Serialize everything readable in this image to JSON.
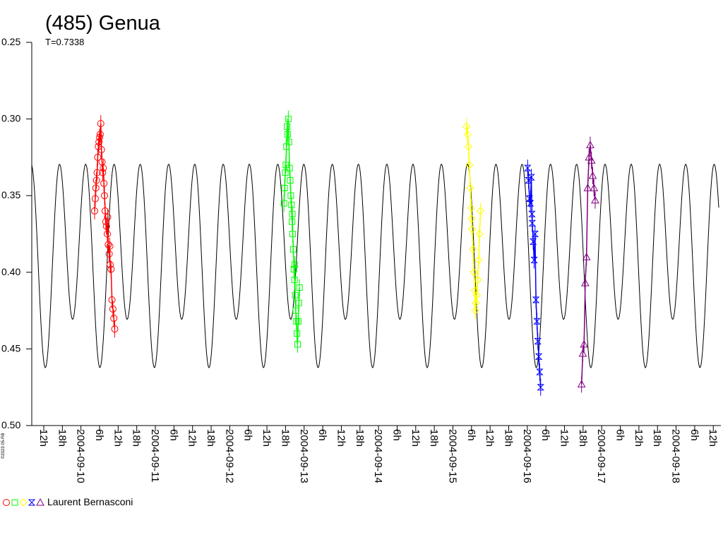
{
  "chart_data": {
    "type": "scatter",
    "title": "(485) Genua",
    "subtitle": "T=0.7338",
    "y_axis": {
      "range": [
        0.25,
        0.5
      ],
      "inverted": true,
      "tick_labels": [
        "0.25",
        "0.30",
        "0.35",
        "0.40",
        "0.45",
        "0.50"
      ]
    },
    "x_axis": {
      "range": [
        "2004-09-09 8h",
        "2004-09-18 21h"
      ],
      "tick_labels": [
        "12h",
        "18h",
        "2004-09-10",
        "6h",
        "12h",
        "18h",
        "2004-09-11",
        "6h",
        "12h",
        "18h",
        "2004-09-12",
        "6h",
        "12h",
        "18h",
        "2004-09-13",
        "6h",
        "12h",
        "18h",
        "2004-09-14",
        "6h",
        "12h",
        "18h",
        "2004-09-15",
        "6h",
        "12h",
        "18h",
        "2004-09-16",
        "6h",
        "12h",
        "18h",
        "2004-09-17",
        "6h",
        "12h",
        "18h",
        "2004-09-18",
        "6h",
        "12h"
      ]
    },
    "model_curve": {
      "color": "#000000",
      "peak_min": 0.32,
      "trough_max": 0.468,
      "secondary_peak": 0.34,
      "secondary_trough": 0.425,
      "period_hours": 17.6
    },
    "series": [
      {
        "marker": "circle",
        "color": "#ff0000",
        "points": [
          [
            20.4,
            0.36
          ],
          [
            20.6,
            0.352
          ],
          [
            20.8,
            0.345
          ],
          [
            21.0,
            0.34
          ],
          [
            21.2,
            0.335
          ],
          [
            21.4,
            0.325
          ],
          [
            21.6,
            0.318
          ],
          [
            21.8,
            0.315
          ],
          [
            22.0,
            0.312
          ],
          [
            22.2,
            0.31
          ],
          [
            22.4,
            0.303
          ],
          [
            22.6,
            0.32
          ],
          [
            22.8,
            0.328
          ],
          [
            23.0,
            0.335
          ],
          [
            23.2,
            0.332
          ],
          [
            23.4,
            0.342
          ],
          [
            23.6,
            0.35
          ],
          [
            23.8,
            0.36
          ],
          [
            24.0,
            0.367
          ],
          [
            24.2,
            0.37
          ],
          [
            24.5,
            0.375
          ],
          [
            24.8,
            0.382
          ],
          [
            25.1,
            0.388
          ],
          [
            25.4,
            0.395
          ],
          [
            25.7,
            0.398
          ],
          [
            26.0,
            0.418
          ],
          [
            26.3,
            0.424
          ],
          [
            26.6,
            0.43
          ],
          [
            26.9,
            0.437
          ],
          [
            25.3,
            0.383
          ],
          [
            24.6,
            0.364
          ]
        ]
      },
      {
        "marker": "square",
        "color": "#00ff00",
        "points": [
          [
            81.5,
            0.355
          ],
          [
            81.7,
            0.345
          ],
          [
            81.9,
            0.335
          ],
          [
            82.1,
            0.33
          ],
          [
            82.3,
            0.318
          ],
          [
            82.5,
            0.305
          ],
          [
            82.7,
            0.31
          ],
          [
            82.9,
            0.3
          ],
          [
            83.1,
            0.315
          ],
          [
            83.3,
            0.332
          ],
          [
            83.5,
            0.34
          ],
          [
            83.7,
            0.35
          ],
          [
            83.9,
            0.356
          ],
          [
            84.1,
            0.367
          ],
          [
            84.3,
            0.375
          ],
          [
            84.5,
            0.385
          ],
          [
            84.7,
            0.398
          ],
          [
            84.9,
            0.405
          ],
          [
            85.1,
            0.415
          ],
          [
            85.3,
            0.425
          ],
          [
            85.5,
            0.432
          ],
          [
            85.7,
            0.44
          ],
          [
            85.9,
            0.447
          ],
          [
            86.1,
            0.432
          ],
          [
            86.3,
            0.42
          ],
          [
            86.5,
            0.41
          ],
          [
            85.0,
            0.395
          ],
          [
            84.2,
            0.362
          ]
        ]
      },
      {
        "marker": "diamond",
        "color": "#ffff00",
        "points": [
          [
            140.4,
            0.305
          ],
          [
            140.7,
            0.31
          ],
          [
            141.0,
            0.318
          ],
          [
            141.3,
            0.33
          ],
          [
            141.6,
            0.345
          ],
          [
            141.9,
            0.358
          ],
          [
            142.2,
            0.372
          ],
          [
            142.5,
            0.385
          ],
          [
            142.8,
            0.4
          ],
          [
            143.1,
            0.412
          ],
          [
            143.4,
            0.42
          ],
          [
            143.7,
            0.415
          ],
          [
            144.0,
            0.405
          ],
          [
            144.3,
            0.392
          ],
          [
            144.6,
            0.375
          ],
          [
            144.9,
            0.36
          ],
          [
            142.0,
            0.365
          ],
          [
            143.2,
            0.425
          ]
        ]
      },
      {
        "marker": "bowtie",
        "color": "#0000ff",
        "points": [
          [
            160.1,
            0.332
          ],
          [
            160.4,
            0.34
          ],
          [
            160.7,
            0.352
          ],
          [
            161.0,
            0.355
          ],
          [
            161.3,
            0.338
          ],
          [
            161.6,
            0.368
          ],
          [
            161.9,
            0.38
          ],
          [
            162.2,
            0.392
          ],
          [
            162.5,
            0.375
          ],
          [
            162.8,
            0.418
          ],
          [
            163.1,
            0.432
          ],
          [
            163.4,
            0.445
          ],
          [
            163.7,
            0.455
          ],
          [
            164.0,
            0.465
          ],
          [
            164.3,
            0.475
          ],
          [
            161.5,
            0.362
          ]
        ]
      },
      {
        "marker": "triangle",
        "color": "#800080",
        "points": [
          [
            177.5,
            0.473
          ],
          [
            177.9,
            0.453
          ],
          [
            178.3,
            0.447
          ],
          [
            178.7,
            0.407
          ],
          [
            179.1,
            0.39
          ],
          [
            179.5,
            0.345
          ],
          [
            179.9,
            0.325
          ],
          [
            180.3,
            0.317
          ],
          [
            180.7,
            0.327
          ],
          [
            181.1,
            0.337
          ],
          [
            181.5,
            0.345
          ],
          [
            181.9,
            0.353
          ]
        ]
      }
    ],
    "legend": {
      "position": "bottom-left",
      "label": "Laurent Bernasconi",
      "markers": [
        "circle",
        "square",
        "diamond",
        "bowtie",
        "triangle"
      ]
    },
    "credit": "©2023 05-RB"
  }
}
